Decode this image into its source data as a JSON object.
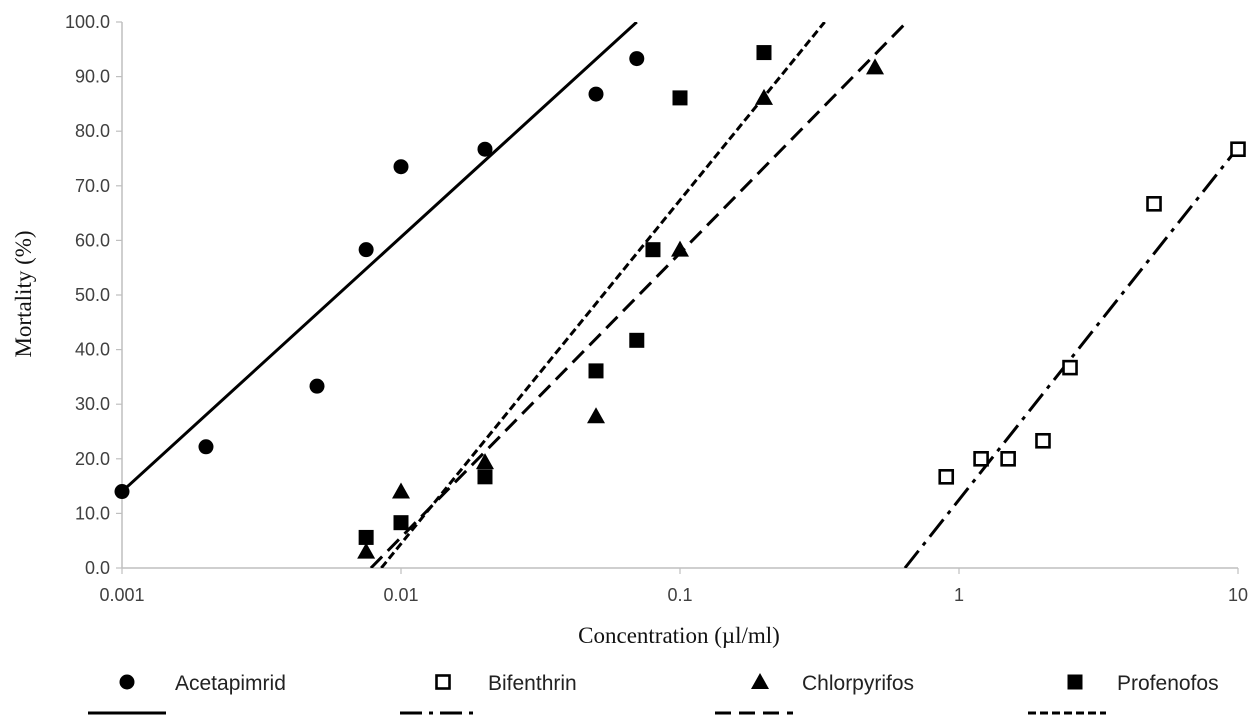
{
  "chart_data": {
    "type": "scatter",
    "xscale": "log",
    "xlabel": "Concentration (µl/ml)",
    "ylabel": "Mortality (%)",
    "xlim": [
      0.001,
      10
    ],
    "ylim": [
      0,
      100
    ],
    "x_ticks": [
      {
        "value": 0.001,
        "label": "0.001"
      },
      {
        "value": 0.01,
        "label": "0.01"
      },
      {
        "value": 0.1,
        "label": "0.1"
      },
      {
        "value": 1,
        "label": "1"
      },
      {
        "value": 10,
        "label": "10"
      }
    ],
    "y_ticks": [
      {
        "value": 0,
        "label": "0.0"
      },
      {
        "value": 10,
        "label": "10.0"
      },
      {
        "value": 20,
        "label": "20.0"
      },
      {
        "value": 30,
        "label": "30.0"
      },
      {
        "value": 40,
        "label": "40.0"
      },
      {
        "value": 50,
        "label": "50.0"
      },
      {
        "value": 60,
        "label": "60.0"
      },
      {
        "value": 70,
        "label": "70.0"
      },
      {
        "value": 80,
        "label": "80.0"
      },
      {
        "value": 90,
        "label": "90.0"
      },
      {
        "value": 100,
        "label": "100.0"
      }
    ],
    "grid": false,
    "legend_position": "bottom",
    "series": [
      {
        "name": "Acetapimrid",
        "marker": "circle",
        "trendline_style": "solid",
        "points": [
          {
            "x": 0.001,
            "y": 14.0
          },
          {
            "x": 0.002,
            "y": 22.2
          },
          {
            "x": 0.005,
            "y": 33.3
          },
          {
            "x": 0.0075,
            "y": 58.3
          },
          {
            "x": 0.01,
            "y": 73.5
          },
          {
            "x": 0.02,
            "y": 76.7
          },
          {
            "x": 0.05,
            "y": 86.8
          },
          {
            "x": 0.07,
            "y": 93.3
          }
        ],
        "trendline": {
          "x1": 0.001,
          "y1": 14.0,
          "x2": 0.07,
          "y2": 100
        }
      },
      {
        "name": "Bifenthrin",
        "marker": "open-square",
        "trendline_style": "dash-dot",
        "points": [
          {
            "x": 0.9,
            "y": 16.7
          },
          {
            "x": 1.2,
            "y": 20.0
          },
          {
            "x": 1.5,
            "y": 20.0
          },
          {
            "x": 2.0,
            "y": 23.3
          },
          {
            "x": 2.5,
            "y": 36.7
          },
          {
            "x": 5.0,
            "y": 66.7
          },
          {
            "x": 10.0,
            "y": 76.7
          }
        ],
        "trendline": {
          "x1": 0.64,
          "y1": 0,
          "x2": 10,
          "y2": 77
        }
      },
      {
        "name": "Chlorpyrifos",
        "marker": "triangle",
        "trendline_style": "dashed",
        "points": [
          {
            "x": 0.0075,
            "y": 3.0
          },
          {
            "x": 0.01,
            "y": 14.0
          },
          {
            "x": 0.02,
            "y": 19.4
          },
          {
            "x": 0.05,
            "y": 27.8
          },
          {
            "x": 0.1,
            "y": 58.3
          },
          {
            "x": 0.2,
            "y": 86.1
          },
          {
            "x": 0.5,
            "y": 91.7
          }
        ],
        "trendline": {
          "x1": 0.0078,
          "y1": 0,
          "x2": 0.65,
          "y2": 100
        }
      },
      {
        "name": "Profenofos",
        "marker": "square",
        "trendline_style": "short-dash",
        "points": [
          {
            "x": 0.0075,
            "y": 5.6
          },
          {
            "x": 0.01,
            "y": 8.3
          },
          {
            "x": 0.02,
            "y": 16.7
          },
          {
            "x": 0.05,
            "y": 36.1
          },
          {
            "x": 0.07,
            "y": 41.7
          },
          {
            "x": 0.08,
            "y": 58.3
          },
          {
            "x": 0.1,
            "y": 86.1
          },
          {
            "x": 0.2,
            "y": 94.4
          }
        ],
        "trendline": {
          "x1": 0.0085,
          "y1": 0,
          "x2": 0.33,
          "y2": 100
        }
      }
    ]
  },
  "colors": {
    "marker": "#000000",
    "axis": "#bfbfbf",
    "tick_text": "#404040"
  }
}
